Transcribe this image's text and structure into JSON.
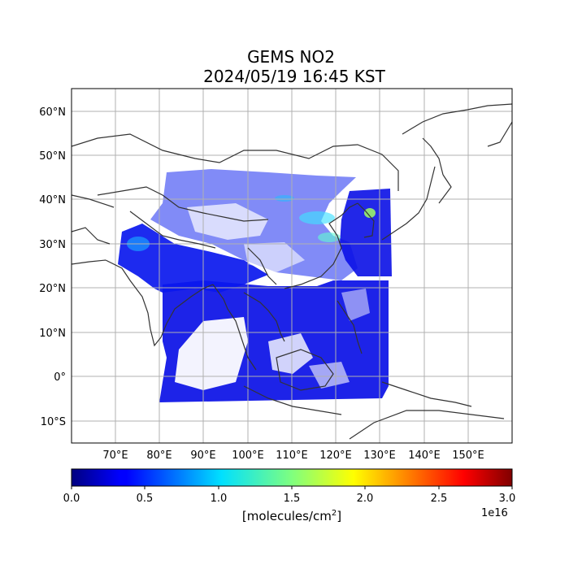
{
  "title": {
    "line1": "GEMS NO2",
    "line2": "2024/05/19 16:45 KST"
  },
  "map": {
    "lon_range": [
      60,
      160
    ],
    "lat_range": [
      -15,
      65
    ],
    "lon_ticks": [
      "70°E",
      "80°E",
      "90°E",
      "100°E",
      "110°E",
      "120°E",
      "130°E",
      "140°E",
      "150°E"
    ],
    "lat_ticks": [
      "60°N",
      "50°N",
      "40°N",
      "30°N",
      "20°N",
      "10°N",
      "0°",
      "10°S"
    ]
  },
  "colorbar": {
    "ticks": [
      "0.0",
      "0.5",
      "1.0",
      "1.5",
      "2.0",
      "2.5",
      "3.0"
    ],
    "exponent": "1e16",
    "unit_label": "[molecules/cm",
    "unit_sup": "2",
    "unit_close": "]",
    "colormap": "jet"
  }
}
